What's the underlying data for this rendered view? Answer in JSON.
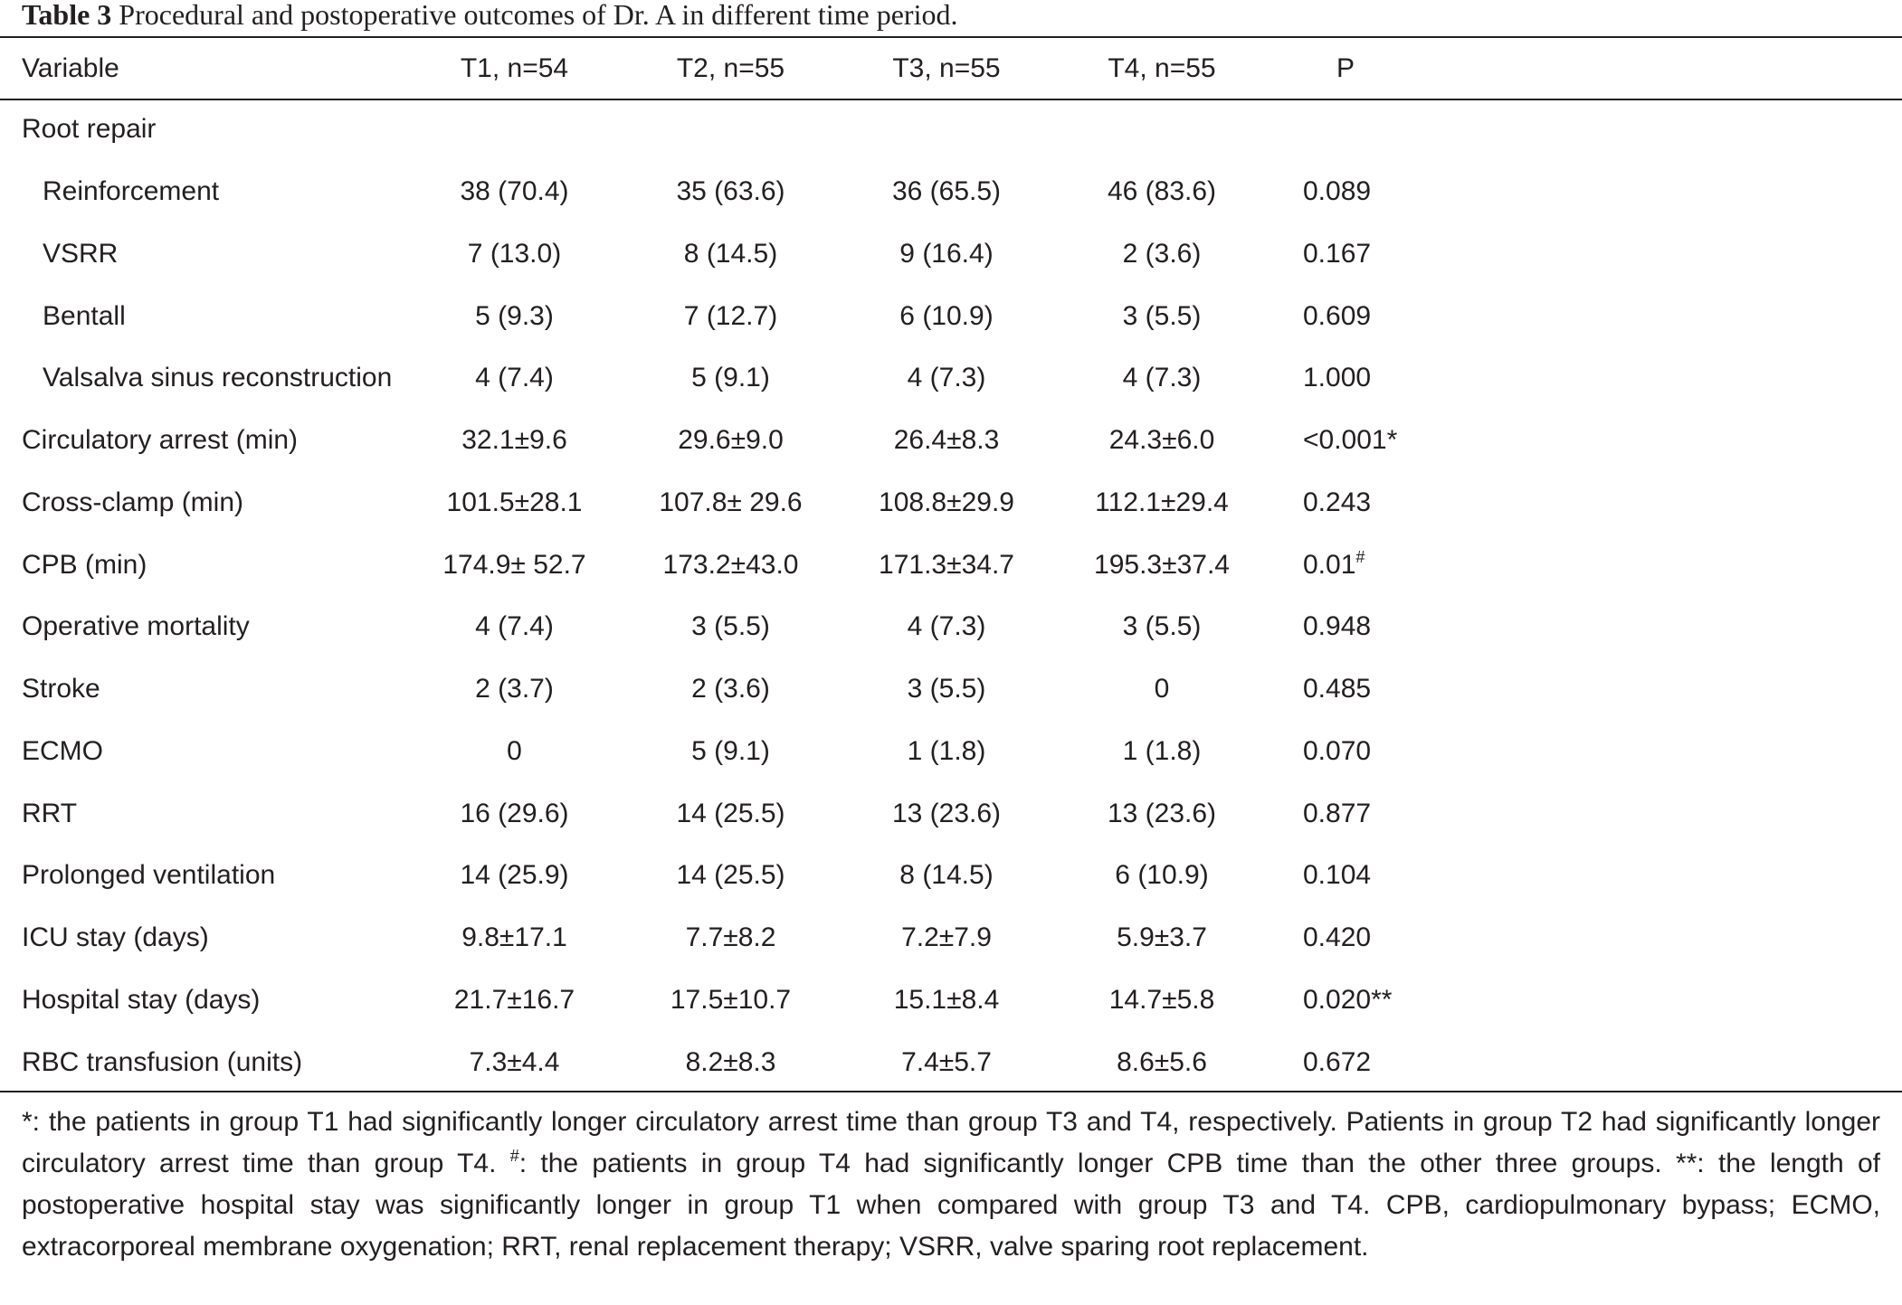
{
  "caption": {
    "label": "Table 3",
    "text": "Procedural and postoperative outcomes of Dr. A in different time period."
  },
  "table": {
    "headers": [
      "Variable",
      "T1, n=54",
      "T2, n=55",
      "T3, n=55",
      "T4, n=55",
      "P"
    ],
    "rows": [
      {
        "variable": "Root repair",
        "indent": false,
        "t1": "",
        "t2": "",
        "t3": "",
        "t4": "",
        "p": "",
        "p_sup": ""
      },
      {
        "variable": "Reinforcement",
        "indent": true,
        "t1": "38 (70.4)",
        "t2": "35 (63.6)",
        "t3": "36 (65.5)",
        "t4": "46 (83.6)",
        "p": "0.089",
        "p_sup": ""
      },
      {
        "variable": "VSRR",
        "indent": true,
        "t1": "7 (13.0)",
        "t2": "8 (14.5)",
        "t3": "9 (16.4)",
        "t4": "2 (3.6)",
        "p": "0.167",
        "p_sup": ""
      },
      {
        "variable": "Bentall",
        "indent": true,
        "t1": "5 (9.3)",
        "t2": "7 (12.7)",
        "t3": "6 (10.9)",
        "t4": "3 (5.5)",
        "p": "0.609",
        "p_sup": ""
      },
      {
        "variable": "Valsalva sinus reconstruction",
        "indent": true,
        "t1": "4 (7.4)",
        "t2": "5 (9.1)",
        "t3": "4 (7.3)",
        "t4": "4 (7.3)",
        "p": "1.000",
        "p_sup": ""
      },
      {
        "variable": "Circulatory arrest (min)",
        "indent": false,
        "t1": "32.1±9.6",
        "t2": "29.6±9.0",
        "t3": "26.4±8.3",
        "t4": "24.3±6.0",
        "p": "<0.001*",
        "p_sup": ""
      },
      {
        "variable": "Cross-clamp (min)",
        "indent": false,
        "t1": "101.5±28.1",
        "t2": "107.8± 29.6",
        "t3": "108.8±29.9",
        "t4": "112.1±29.4",
        "p": "0.243",
        "p_sup": ""
      },
      {
        "variable": "CPB (min)",
        "indent": false,
        "t1": "174.9± 52.7",
        "t2": "173.2±43.0",
        "t3": "171.3±34.7",
        "t4": "195.3±37.4",
        "p": "0.01",
        "p_sup": "#"
      },
      {
        "variable": "Operative mortality",
        "indent": false,
        "t1": "4 (7.4)",
        "t2": "3 (5.5)",
        "t3": "4 (7.3)",
        "t4": "3 (5.5)",
        "p": "0.948",
        "p_sup": ""
      },
      {
        "variable": "Stroke",
        "indent": false,
        "t1": "2 (3.7)",
        "t2": "2 (3.6)",
        "t3": "3 (5.5)",
        "t4": "0",
        "p": "0.485",
        "p_sup": ""
      },
      {
        "variable": "ECMO",
        "indent": false,
        "t1": "0",
        "t2": "5 (9.1)",
        "t3": "1 (1.8)",
        "t4": "1 (1.8)",
        "p": "0.070",
        "p_sup": ""
      },
      {
        "variable": "RRT",
        "indent": false,
        "t1": "16 (29.6)",
        "t2": "14 (25.5)",
        "t3": "13 (23.6)",
        "t4": "13 (23.6)",
        "p": "0.877",
        "p_sup": ""
      },
      {
        "variable": "Prolonged ventilation",
        "indent": false,
        "t1": "14 (25.9)",
        "t2": "14 (25.5)",
        "t3": "8 (14.5)",
        "t4": "6 (10.9)",
        "p": "0.104",
        "p_sup": ""
      },
      {
        "variable": "ICU stay (days)",
        "indent": false,
        "t1": "9.8±17.1",
        "t2": "7.7±8.2",
        "t3": "7.2±7.9",
        "t4": "5.9±3.7",
        "p": "0.420",
        "p_sup": ""
      },
      {
        "variable": "Hospital stay (days)",
        "indent": false,
        "t1": "21.7±16.7",
        "t2": "17.5±10.7",
        "t3": "15.1±8.4",
        "t4": "14.7±5.8",
        "p": "0.020**",
        "p_sup": ""
      },
      {
        "variable": "RBC transfusion (units)",
        "indent": false,
        "t1": "7.3±4.4",
        "t2": "8.2±8.3",
        "t3": "7.4±5.7",
        "t4": "8.6±5.6",
        "p": "0.672",
        "p_sup": ""
      }
    ]
  },
  "footnote": {
    "part1": "*: the patients in group T1 had significantly longer circulatory arrest time than group T3 and T4, respectively. Patients in group T2 had significantly longer circulatory arrest time than group T4. ",
    "hash_mark": "#",
    "part2": ": the patients in group T4 had significantly longer CPB time than the other three groups. **: the length of postoperative hospital stay was significantly longer in group T1 when compared with group T3 and T4. CPB, cardiopulmonary bypass; ECMO, extracorporeal membrane oxygenation; RRT, renal replacement therapy; VSRR, valve sparing root replacement."
  }
}
